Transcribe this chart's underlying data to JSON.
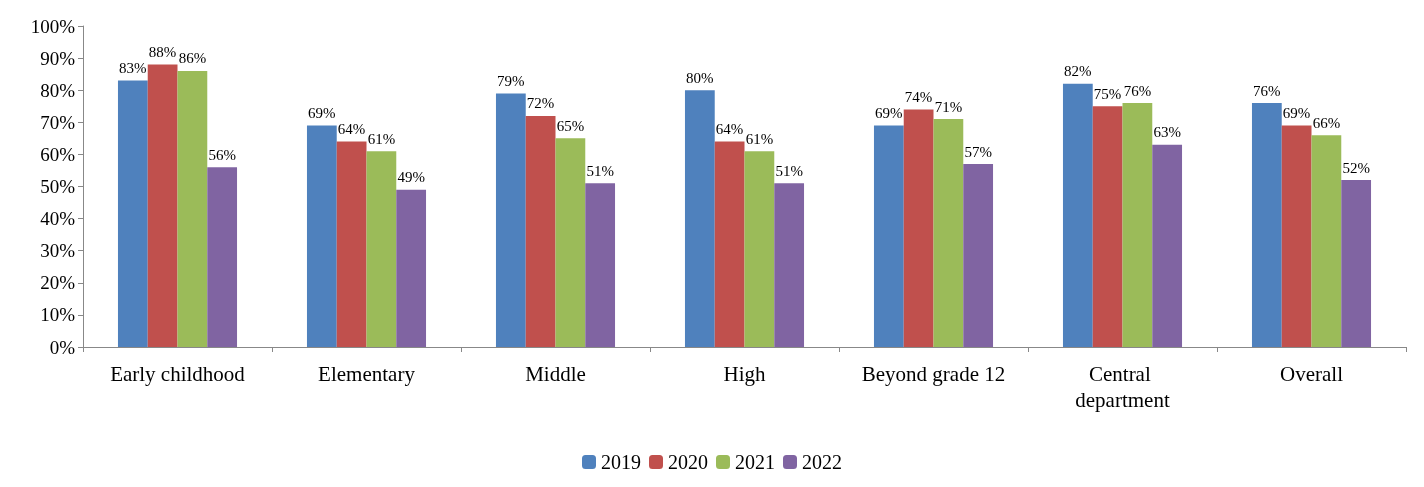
{
  "chart_data": {
    "type": "bar",
    "categories": [
      "Early childhood",
      "Elementary",
      "Middle",
      "High",
      "Beyond grade 12",
      "Central department",
      "Overall"
    ],
    "series": [
      {
        "name": "2019",
        "color": "#4f81bd",
        "values": [
          83,
          69,
          79,
          80,
          69,
          82,
          76
        ],
        "value_labels": [
          "83%",
          "69%",
          "79%",
          "80%",
          "69%",
          "82%",
          "76%"
        ]
      },
      {
        "name": "2020",
        "color": "#c0504d",
        "values": [
          88,
          64,
          72,
          64,
          74,
          75,
          69
        ],
        "value_labels": [
          "88%",
          "64%",
          "72%",
          "64%",
          "74%",
          "75%",
          "69%"
        ]
      },
      {
        "name": "2021",
        "color": "#9bbb59",
        "values": [
          86,
          61,
          65,
          61,
          71,
          76,
          66
        ],
        "value_labels": [
          "86%",
          "61%",
          "65%",
          "61%",
          "71%",
          "76%",
          "66%"
        ]
      },
      {
        "name": "2022",
        "color": "#8064a2",
        "values": [
          56,
          49,
          51,
          51,
          57,
          63,
          52
        ],
        "value_labels": [
          "56%",
          "49%",
          "51%",
          "51%",
          "57%",
          "63%",
          "52%"
        ]
      }
    ],
    "ylim": [
      0,
      100
    ],
    "yticks": [
      {
        "value": 0,
        "label": "0%"
      },
      {
        "value": 10,
        "label": "10%"
      },
      {
        "value": 20,
        "label": "20%"
      },
      {
        "value": 30,
        "label": "30%"
      },
      {
        "value": 40,
        "label": "40%"
      },
      {
        "value": 50,
        "label": "50%"
      },
      {
        "value": 60,
        "label": "60%"
      },
      {
        "value": 70,
        "label": "70%"
      },
      {
        "value": 80,
        "label": "80%"
      },
      {
        "value": 90,
        "label": "90%"
      },
      {
        "value": 100,
        "label": "100%"
      }
    ],
    "grid": false,
    "legend": "bottom"
  }
}
